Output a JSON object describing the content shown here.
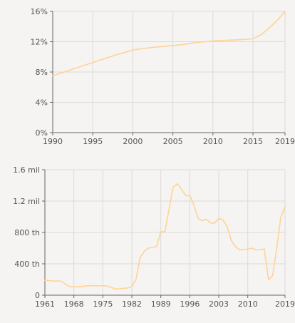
{
  "colors": {
    "background": "#f5f4f2",
    "grid": "#dadada",
    "axis": "#666666",
    "text": "#555555",
    "series": "#ffd394"
  },
  "chart_data": [
    {
      "type": "line",
      "grid": true,
      "x_ticks": [
        "1990",
        "1995",
        "2000",
        "2005",
        "2010",
        "2015",
        "2019"
      ],
      "y_ticks": [
        "0%",
        "4%",
        "8%",
        "12%",
        "16%"
      ],
      "xlim": [
        1990,
        2019
      ],
      "ylim": [
        0,
        16
      ],
      "y_unit": "%",
      "series": [
        {
          "x": [
            1990,
            1992,
            1994,
            1996,
            1998,
            2000,
            2002,
            2004,
            2006,
            2008,
            2010,
            2012,
            2014,
            2015,
            2016,
            2017,
            2018,
            2019
          ],
          "y": [
            7.5,
            8.2,
            8.9,
            9.6,
            10.3,
            10.9,
            11.2,
            11.4,
            11.6,
            11.9,
            12.1,
            12.2,
            12.3,
            12.4,
            12.9,
            13.8,
            14.8,
            16.0
          ]
        }
      ]
    },
    {
      "type": "line",
      "grid": true,
      "x_ticks": [
        "1961",
        "1968",
        "1975",
        "1982",
        "1989",
        "1996",
        "2003",
        "2010",
        "2019"
      ],
      "y_ticks": [
        "0",
        "400 th",
        "800 th",
        "1.2 mil",
        "1.6 mil"
      ],
      "xlim": [
        1961,
        2019
      ],
      "ylim": [
        0,
        1600000
      ],
      "series": [
        {
          "x": [
            1961,
            1962,
            1963,
            1964,
            1965,
            1966,
            1967,
            1968,
            1969,
            1970,
            1971,
            1972,
            1973,
            1974,
            1975,
            1976,
            1977,
            1978,
            1979,
            1980,
            1981,
            1982,
            1983,
            1984,
            1985,
            1986,
            1987,
            1988,
            1989,
            1990,
            1991,
            1992,
            1993,
            1994,
            1995,
            1996,
            1997,
            1998,
            1999,
            2000,
            2001,
            2002,
            2003,
            2004,
            2005,
            2006,
            2007,
            2008,
            2009,
            2010,
            2011,
            2012,
            2013,
            2014,
            2015,
            2016,
            2017,
            2018,
            2019
          ],
          "y": [
            190000,
            185000,
            180000,
            182000,
            178000,
            140000,
            110000,
            105000,
            108000,
            112000,
            118000,
            122000,
            120000,
            120000,
            120000,
            118000,
            100000,
            80000,
            82000,
            88000,
            92000,
            110000,
            200000,
            480000,
            560000,
            600000,
            610000,
            620000,
            810000,
            810000,
            1100000,
            1380000,
            1420000,
            1350000,
            1270000,
            1270000,
            1150000,
            980000,
            950000,
            970000,
            920000,
            920000,
            980000,
            960000,
            880000,
            700000,
            620000,
            580000,
            580000,
            590000,
            600000,
            580000,
            580000,
            590000,
            200000,
            250000,
            600000,
            1000000,
            1130000
          ]
        }
      ]
    }
  ]
}
